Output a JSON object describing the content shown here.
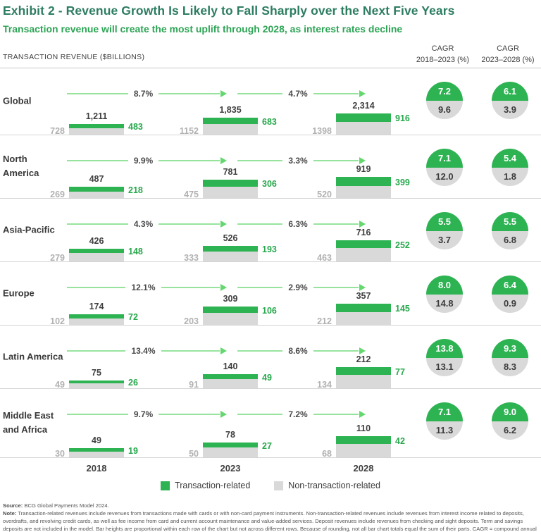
{
  "header": {
    "title": "Exhibit 2 - Revenue Growth Is Likely to Fall Sharply over the Next Five Years",
    "subtitle": "Transaction revenue will create the most uplift through 2028, as interest rates decline",
    "axis_title": "TRANSACTION REVENUE ($BILLIONS)",
    "cagr_col1_line1": "CAGR",
    "cagr_col1_line2": "2018–2023 (%)",
    "cagr_col2_line1": "CAGR",
    "cagr_col2_line2": "2023–2028 (%)"
  },
  "colors": {
    "bar_green": "#2eb353",
    "bar_gray": "#d9d9d9",
    "arrow_green": "#97e39e",
    "title_green": "#2d7d60",
    "subtitle_green": "#2da455"
  },
  "chart_data": {
    "type": "bar",
    "stacked": true,
    "title": "Exhibit 2 - Revenue Growth Is Likely to Fall Sharply over the Next Five Years",
    "subtitle": "Transaction revenue will create the most uplift through 2028, as interest rates decline",
    "unit": "TRANSACTION REVENUE ($BILLIONS)",
    "years": [
      "2018",
      "2023",
      "2028"
    ],
    "series_names": [
      "Transaction-related",
      "Non-transaction-related"
    ],
    "layout_note": "Bar heights proportional within each row but not across rows",
    "regions": [
      {
        "name": "Global",
        "bars": [
          {
            "year": "2018",
            "total": 1211,
            "total_label": "1,211",
            "non_transaction": 728,
            "transaction": 483
          },
          {
            "year": "2023",
            "total": 1835,
            "total_label": "1,835",
            "non_transaction": 1152,
            "transaction": 683
          },
          {
            "year": "2028",
            "total": 2314,
            "total_label": "2,314",
            "non_transaction": 1398,
            "transaction": 916
          }
        ],
        "growth": [
          "8.7%",
          "4.7%"
        ],
        "cagr": [
          {
            "transaction": "7.2",
            "non_transaction": "9.6"
          },
          {
            "transaction": "6.1",
            "non_transaction": "3.9"
          }
        ]
      },
      {
        "name": "North America",
        "bars": [
          {
            "year": "2018",
            "total": 487,
            "total_label": "487",
            "non_transaction": 269,
            "transaction": 218
          },
          {
            "year": "2023",
            "total": 781,
            "total_label": "781",
            "non_transaction": 475,
            "transaction": 306
          },
          {
            "year": "2028",
            "total": 919,
            "total_label": "919",
            "non_transaction": 520,
            "transaction": 399
          }
        ],
        "growth": [
          "9.9%",
          "3.3%"
        ],
        "cagr": [
          {
            "transaction": "7.1",
            "non_transaction": "12.0"
          },
          {
            "transaction": "5.4",
            "non_transaction": "1.8"
          }
        ]
      },
      {
        "name": "Asia-Pacific",
        "bars": [
          {
            "year": "2018",
            "total": 426,
            "total_label": "426",
            "non_transaction": 279,
            "transaction": 148
          },
          {
            "year": "2023",
            "total": 526,
            "total_label": "526",
            "non_transaction": 333,
            "transaction": 193
          },
          {
            "year": "2028",
            "total": 716,
            "total_label": "716",
            "non_transaction": 463,
            "transaction": 252
          }
        ],
        "growth": [
          "4.3%",
          "6.3%"
        ],
        "cagr": [
          {
            "transaction": "5.5",
            "non_transaction": "3.7"
          },
          {
            "transaction": "5.5",
            "non_transaction": "6.8"
          }
        ]
      },
      {
        "name": "Europe",
        "bars": [
          {
            "year": "2018",
            "total": 174,
            "total_label": "174",
            "non_transaction": 102,
            "transaction": 72
          },
          {
            "year": "2023",
            "total": 309,
            "total_label": "309",
            "non_transaction": 203,
            "transaction": 106
          },
          {
            "year": "2028",
            "total": 357,
            "total_label": "357",
            "non_transaction": 212,
            "transaction": 145
          }
        ],
        "growth": [
          "12.1%",
          "2.9%"
        ],
        "cagr": [
          {
            "transaction": "8.0",
            "non_transaction": "14.8"
          },
          {
            "transaction": "6.4",
            "non_transaction": "0.9"
          }
        ]
      },
      {
        "name": "Latin America",
        "bars": [
          {
            "year": "2018",
            "total": 75,
            "total_label": "75",
            "non_transaction": 49,
            "transaction": 26
          },
          {
            "year": "2023",
            "total": 140,
            "total_label": "140",
            "non_transaction": 91,
            "transaction": 49
          },
          {
            "year": "2028",
            "total": 212,
            "total_label": "212",
            "non_transaction": 134,
            "transaction": 77
          }
        ],
        "growth": [
          "13.4%",
          "8.6%"
        ],
        "cagr": [
          {
            "transaction": "13.8",
            "non_transaction": "13.1"
          },
          {
            "transaction": "9.3",
            "non_transaction": "8.3"
          }
        ]
      },
      {
        "name": "Middle East and Africa",
        "bars": [
          {
            "year": "2018",
            "total": 49,
            "total_label": "49",
            "non_transaction": 30,
            "transaction": 19
          },
          {
            "year": "2023",
            "total": 78,
            "total_label": "78",
            "non_transaction": 50,
            "transaction": 27
          },
          {
            "year": "2028",
            "total": 110,
            "total_label": "110",
            "non_transaction": 68,
            "transaction": 42
          }
        ],
        "growth": [
          "9.7%",
          "7.2%"
        ],
        "cagr": [
          {
            "transaction": "7.1",
            "non_transaction": "11.3"
          },
          {
            "transaction": "9.0",
            "non_transaction": "6.2"
          }
        ]
      }
    ]
  },
  "legend": {
    "items": [
      {
        "label": "Transaction-related",
        "color": "#2eb353"
      },
      {
        "label": "Non-transaction-related",
        "color": "#d9d9d9"
      }
    ]
  },
  "footer": {
    "source_label": "Source:",
    "source_text": " BCG Global Payments Model 2024.",
    "note_label": "Note:",
    "note_text": " Transaction-related revenues include revenues from transactions made with cards or with non-card payment instruments. Non-transaction-related revenues include revenues from interest income related to deposits, overdrafts, and revolving credit cards, as well as fee income from card and current account maintenance and value-added services. Deposit revenues include revenues from checking and sight deposits. Term and savings deposits are not included in the model. Bar heights are proportional within each row of the chart but not across different rows. Because of rounding, not all bar chart totals equal the sum of their parts. CAGR = compound annual growth rate."
  }
}
